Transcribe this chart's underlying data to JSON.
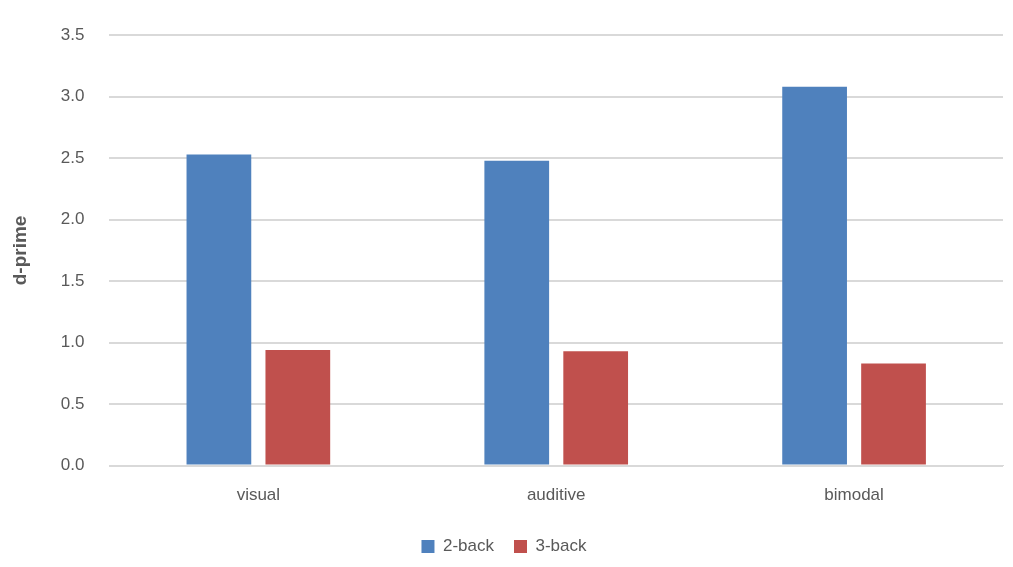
{
  "chart_data": {
    "type": "bar",
    "ylabel": "d-prime",
    "categories": [
      "visual",
      "auditive",
      "bimodal"
    ],
    "series": [
      {
        "name": "2-back",
        "color": "#4f81bd",
        "values": [
          2.53,
          2.48,
          3.08
        ]
      },
      {
        "name": "3-back",
        "color": "#c0504d",
        "values": [
          0.94,
          0.93,
          0.83
        ]
      }
    ],
    "ylim": [
      0,
      3.5
    ],
    "yticks": [
      {
        "value": 0,
        "label": "0.0"
      },
      {
        "value": 0.5,
        "label": "0.5"
      },
      {
        "value": 1,
        "label": "1.0"
      },
      {
        "value": 1.5,
        "label": "1.5"
      },
      {
        "value": 2,
        "label": "2.0"
      },
      {
        "value": 2.5,
        "label": "2.5"
      },
      {
        "value": 3,
        "label": "3.0"
      },
      {
        "value": 3.5,
        "label": "3.5"
      }
    ],
    "grid": "y",
    "legend": "bottom"
  }
}
